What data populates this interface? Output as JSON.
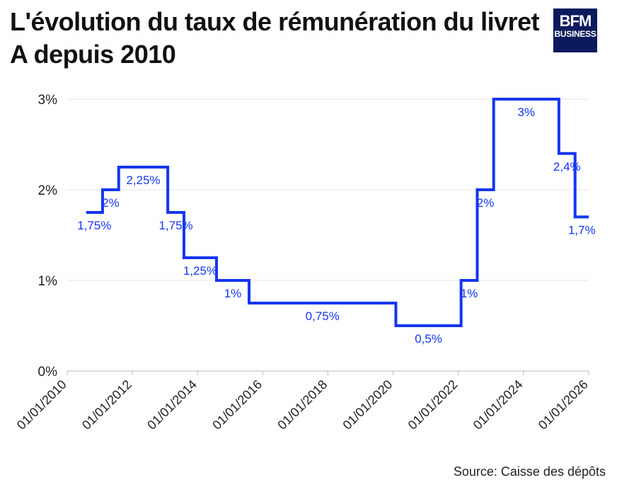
{
  "header": {
    "title": "L'évolution du taux de rémunération du livret A depuis 2010",
    "logo_text_top": "BFM",
    "logo_text_bottom": "BUSINESS"
  },
  "footer": {
    "source": "Source: Caisse des dépôts"
  },
  "colors": {
    "line": "#1436f0",
    "grid": "#e6e6e6",
    "axis": "#bbbbbb",
    "logo_bg": "#0b1a5c"
  },
  "chart_data": {
    "type": "line",
    "step": true,
    "title": "L'évolution du taux de rémunération du livret A depuis 2010",
    "xlabel": "",
    "ylabel": "",
    "ylim": [
      0,
      3
    ],
    "xlim": [
      "2010-01-01",
      "2026-01-01"
    ],
    "y_ticks": [
      {
        "value": 0,
        "label": "0%"
      },
      {
        "value": 1,
        "label": "1%"
      },
      {
        "value": 2,
        "label": "2%"
      },
      {
        "value": 3,
        "label": "3%"
      }
    ],
    "x_ticks": [
      {
        "date": "2010-01-01",
        "label": "01/01/2010"
      },
      {
        "date": "2012-01-01",
        "label": "01/01/2012"
      },
      {
        "date": "2014-01-01",
        "label": "01/01/2014"
      },
      {
        "date": "2016-01-01",
        "label": "01/01/2016"
      },
      {
        "date": "2018-01-01",
        "label": "01/01/2018"
      },
      {
        "date": "2020-01-01",
        "label": "01/01/2020"
      },
      {
        "date": "2022-01-01",
        "label": "01/01/2022"
      },
      {
        "date": "2024-01-01",
        "label": "01/01/2024"
      },
      {
        "date": "2026-01-01",
        "label": "01/01/2026"
      }
    ],
    "grid": true,
    "legend": "none",
    "series": [
      {
        "points": [
          {
            "date": "2010-08-01",
            "value": 1.75,
            "label": "1,75%"
          },
          {
            "date": "2011-02-01",
            "value": 2.0,
            "label": "2%"
          },
          {
            "date": "2011-08-01",
            "value": 2.25,
            "label": "2,25%"
          },
          {
            "date": "2013-02-01",
            "value": 1.75,
            "label": "1,75%"
          },
          {
            "date": "2013-08-01",
            "value": 1.25,
            "label": "1,25%"
          },
          {
            "date": "2014-08-01",
            "value": 1.0,
            "label": "1%"
          },
          {
            "date": "2015-08-01",
            "value": 0.75,
            "label": "0,75%"
          },
          {
            "date": "2020-02-01",
            "value": 0.5,
            "label": "0,5%"
          },
          {
            "date": "2022-02-01",
            "value": 1.0,
            "label": "1%"
          },
          {
            "date": "2022-08-01",
            "value": 2.0,
            "label": "2%"
          },
          {
            "date": "2023-02-01",
            "value": 3.0,
            "label": "3%"
          },
          {
            "date": "2025-02-01",
            "value": 2.4,
            "label": "2,4%"
          },
          {
            "date": "2025-08-01",
            "value": 1.7,
            "label": "1,7%"
          }
        ],
        "end_date": "2026-01-01"
      }
    ]
  }
}
